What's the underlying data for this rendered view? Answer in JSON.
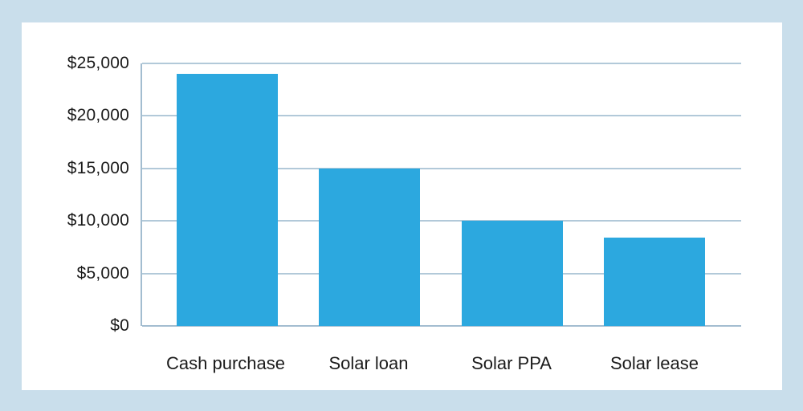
{
  "chart_data": {
    "type": "bar",
    "title": "",
    "xlabel": "",
    "ylabel": "",
    "categories": [
      "Cash purchase",
      "Solar loan",
      "Solar PPA",
      "Solar lease"
    ],
    "values": [
      24000,
      15000,
      10000,
      8400
    ],
    "ylim": [
      0,
      25000
    ],
    "ytick_interval": 5000,
    "ytick_labels": [
      "$0",
      "$5,000",
      "$10,000",
      "$15,000",
      "$20,000",
      "$25,000"
    ],
    "grid": true,
    "legend": "none",
    "currency": "USD"
  },
  "colors": {
    "frame_background": "#c9deeb",
    "panel_background": "#ffffff",
    "bar_fill": "#2ca8df",
    "gridline": "#b2c9d9",
    "axis_line": "#a3bdd0",
    "label_text": "#1b1b1b"
  }
}
